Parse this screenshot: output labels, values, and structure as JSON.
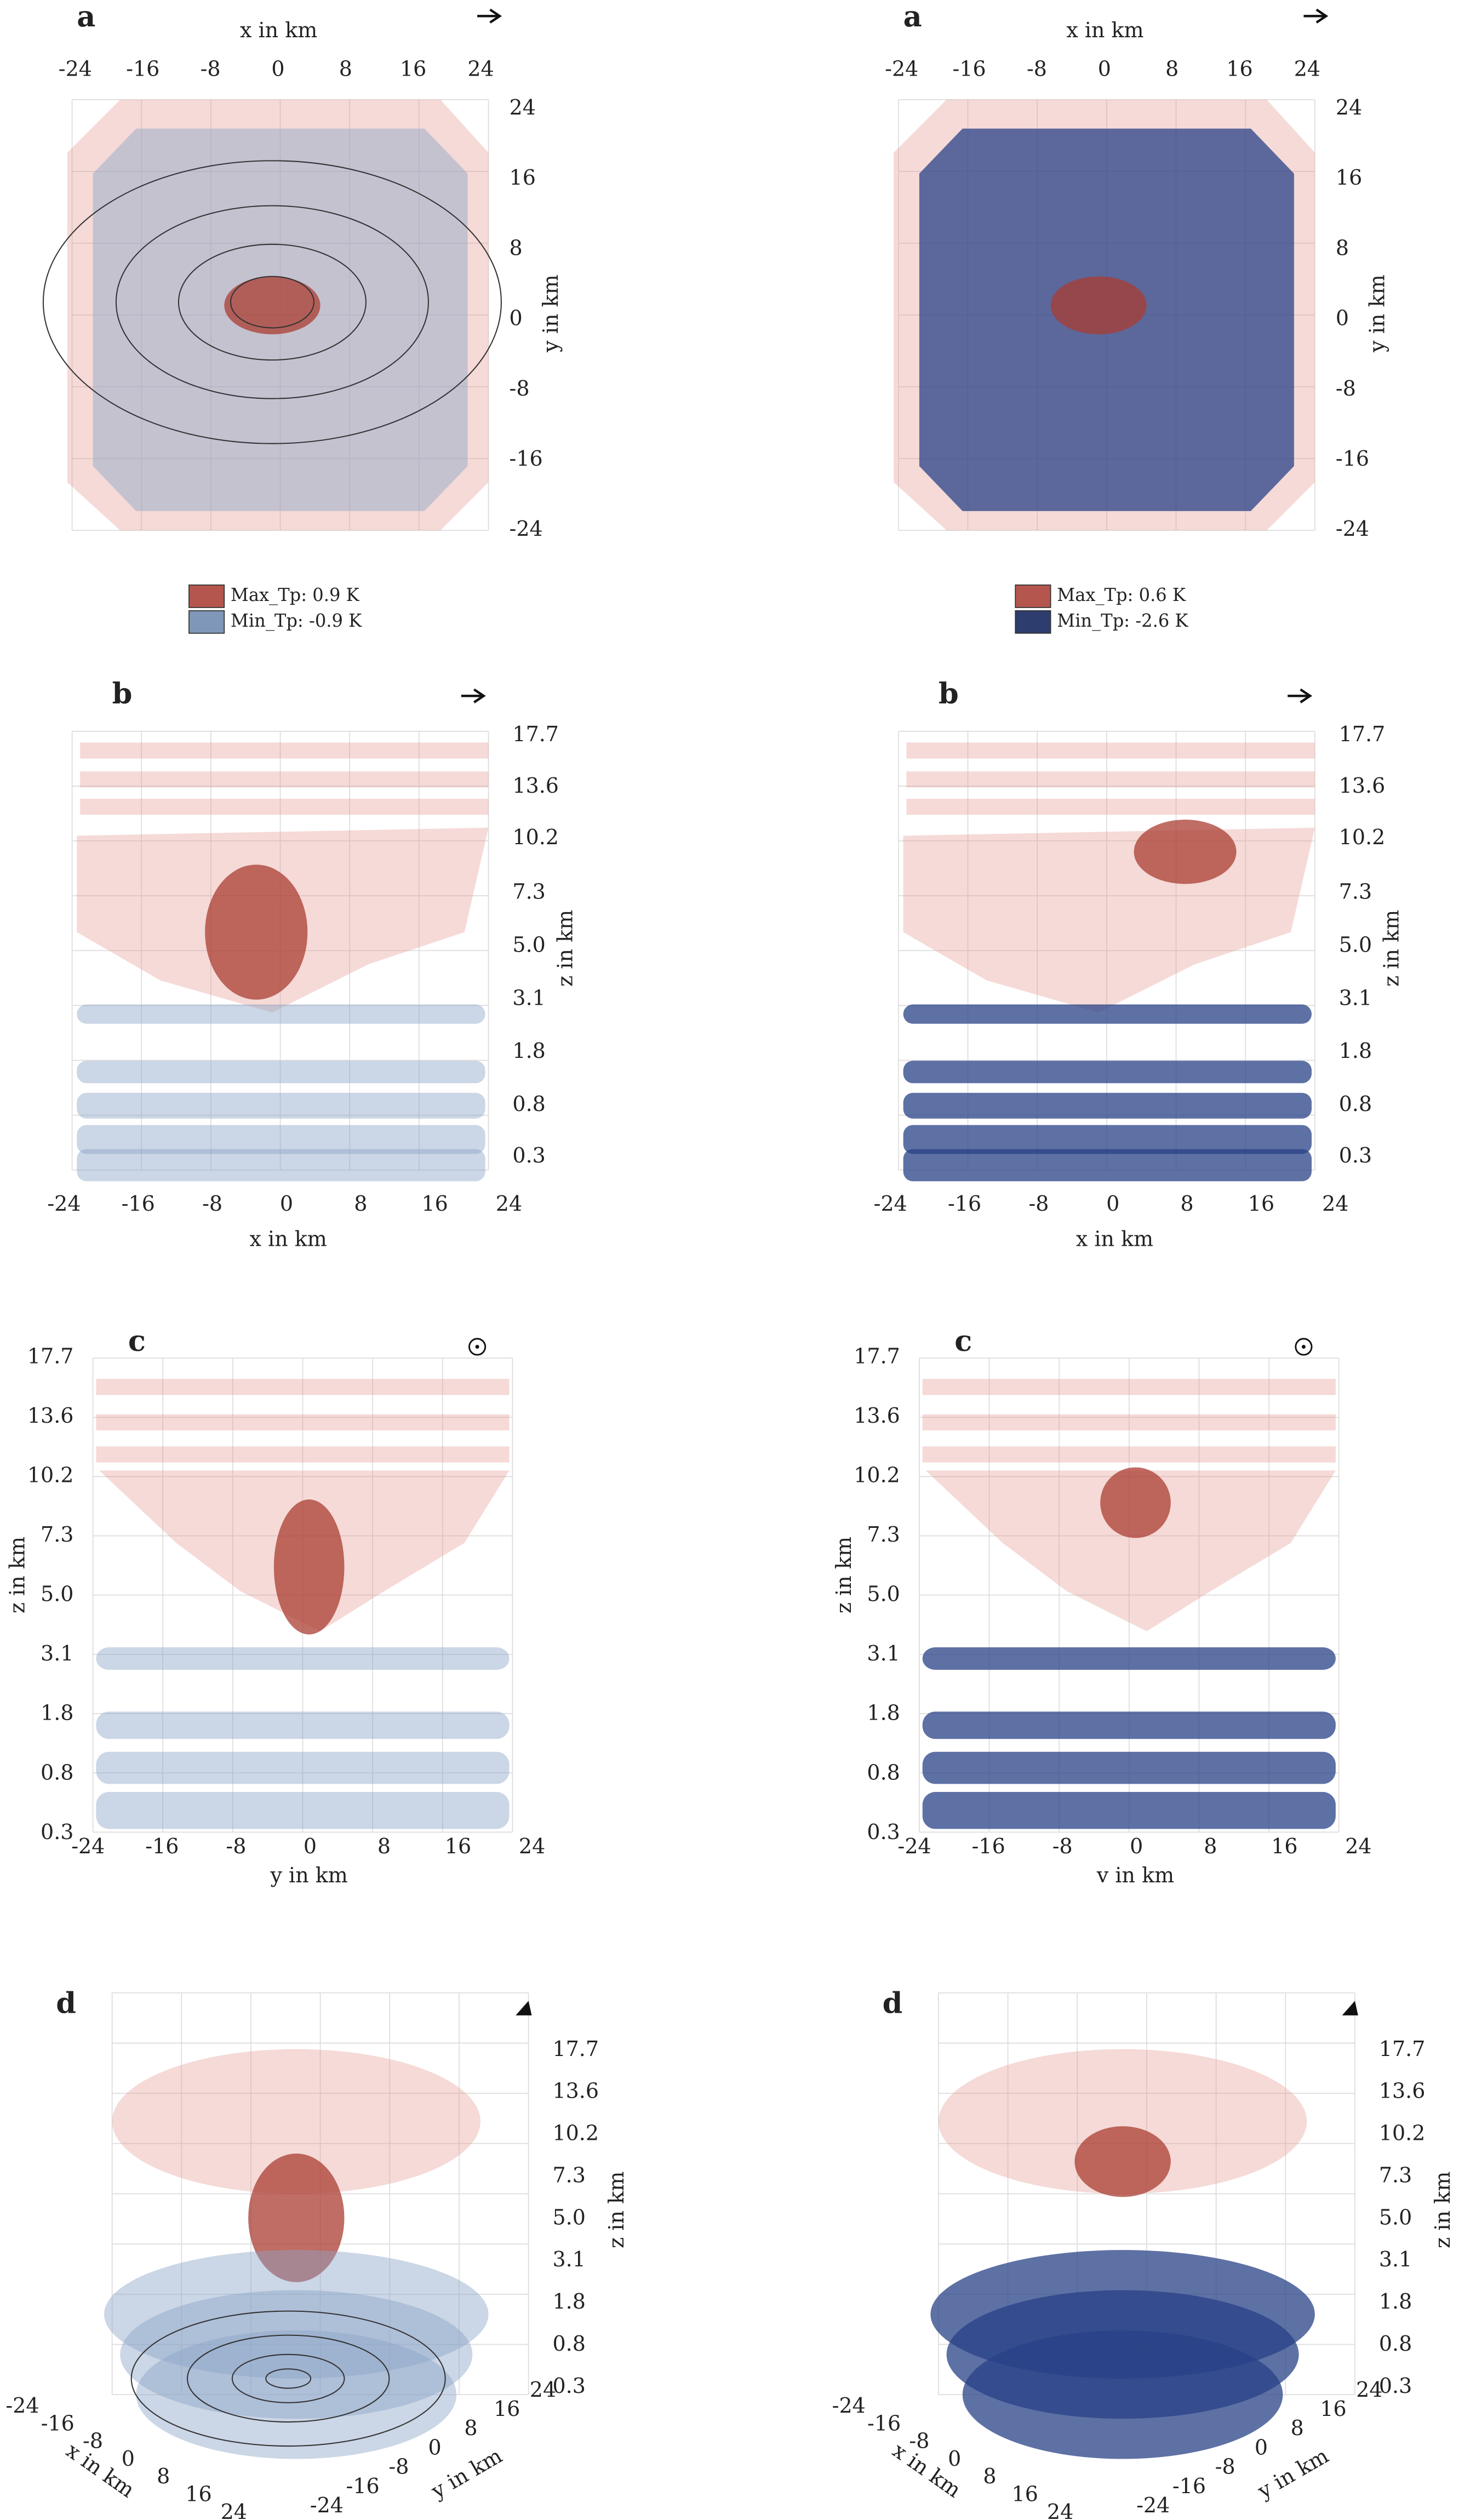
{
  "columns": [
    {
      "legend": [
        {
          "label": "Max_Tp: 0.9 K"
        },
        {
          "label": "Min_Tp: -0.9 K"
        }
      ],
      "panels": [
        {
          "label": "a",
          "x_title": "x in km",
          "x_ticks": [
            "-24",
            "-16",
            "-8",
            "0",
            "8",
            "16",
            "24"
          ],
          "y_title": "y in km",
          "y_ticks": [
            "24",
            "16",
            "8",
            "0",
            "-8",
            "-16",
            "-24"
          ]
        },
        {
          "label": "b",
          "z_title": "z in km",
          "z_ticks": [
            "17.7",
            "13.6",
            "10.2",
            "7.3",
            "5.0",
            "3.1",
            "1.8",
            "0.8",
            "0.3"
          ],
          "x_title": "x in km",
          "x_ticks": [
            "-24",
            "-16",
            "-8",
            "0",
            "8",
            "16",
            "24"
          ]
        },
        {
          "label": "c",
          "z_title": "z in km",
          "z_ticks": [
            "17.7",
            "13.6",
            "10.2",
            "7.3",
            "5.0",
            "3.1",
            "1.8",
            "0.8",
            "0.3"
          ],
          "y_title": "y in km",
          "y_ticks": [
            "-24",
            "-16",
            "-8",
            "0",
            "8",
            "16",
            "24"
          ]
        },
        {
          "label": "d",
          "z_title": "z in km",
          "z_ticks": [
            "17.7",
            "13.6",
            "10.2",
            "7.3",
            "5.0",
            "3.1",
            "1.8",
            "0.8",
            "0.3"
          ],
          "x_title": "x in km",
          "x_ticks": [
            "-24",
            "-16",
            "-8",
            "0",
            "8",
            "16",
            "24"
          ],
          "y_title": "y in km",
          "y_ticks": [
            "-24",
            "-16",
            "-8",
            "0",
            "8",
            "16",
            "24"
          ]
        }
      ]
    },
    {
      "legend": [
        {
          "label": "Max_Tp: 0.6 K"
        },
        {
          "label": "Min_Tp: -2.6 K"
        }
      ],
      "panels": [
        {
          "label": "a",
          "x_title": "x in km",
          "x_ticks": [
            "-24",
            "-16",
            "-8",
            "0",
            "8",
            "16",
            "24"
          ],
          "y_title": "y in km",
          "y_ticks": [
            "24",
            "16",
            "8",
            "0",
            "-8",
            "-16",
            "-24"
          ]
        },
        {
          "label": "b",
          "z_title": "z in km",
          "z_ticks": [
            "17.7",
            "13.6",
            "10.2",
            "7.3",
            "5.0",
            "3.1",
            "1.8",
            "0.8",
            "0.3"
          ],
          "x_title": "x in km",
          "x_ticks": [
            "-24",
            "-16",
            "-8",
            "0",
            "8",
            "16",
            "24"
          ]
        },
        {
          "label": "c",
          "z_title": "z in km",
          "z_ticks": [
            "17.7",
            "13.6",
            "10.2",
            "7.3",
            "5.0",
            "3.1",
            "1.8",
            "0.8",
            "0.3"
          ],
          "y_title": "v in km",
          "y_ticks": [
            "-24",
            "-16",
            "-8",
            "0",
            "8",
            "16",
            "24"
          ]
        },
        {
          "label": "d",
          "z_title": "z in km",
          "z_ticks": [
            "17.7",
            "13.6",
            "10.2",
            "7.3",
            "5.0",
            "3.1",
            "1.8",
            "0.8",
            "0.3"
          ],
          "x_title": "x in km",
          "x_ticks": [
            "-24",
            "-16",
            "-8",
            "0",
            "8",
            "16",
            "24"
          ],
          "y_title": "y in km",
          "y_ticks": [
            "-24",
            "-16",
            "-8",
            "0",
            "8",
            "16",
            "24"
          ]
        }
      ]
    }
  ]
}
